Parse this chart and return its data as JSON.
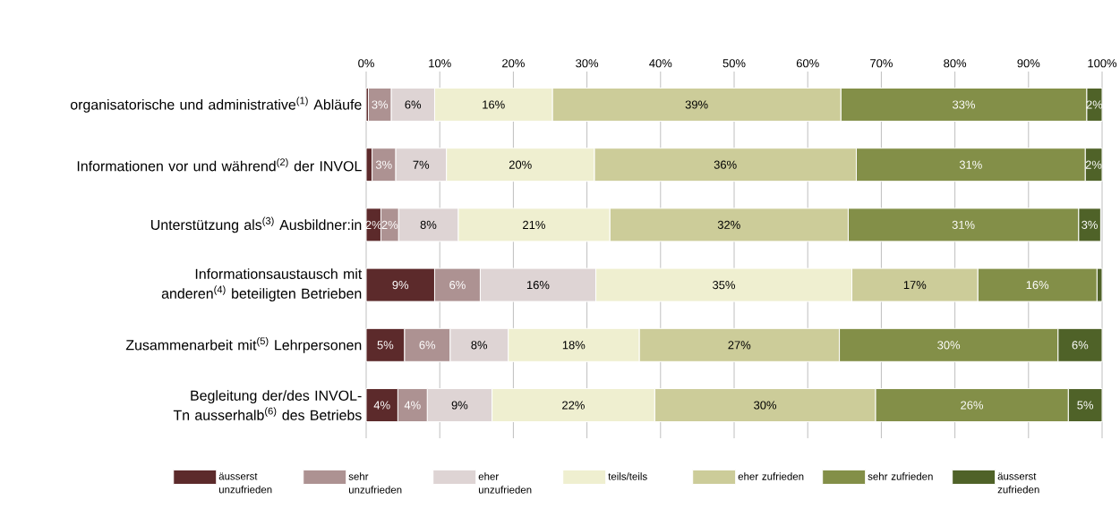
{
  "chart_data": {
    "type": "bar",
    "orientation": "horizontal",
    "stacked": true,
    "categories": [
      "organisatorische und administrative$^{(1)}$ Abläufe",
      "Informationen vor und während$^{(2)}$ der INVOL",
      "Unterstützung als$^{(3)}$ Ausbildner:in",
      "Informationsaustausch mit anderen$^{(4)}$ beteiligten Betrieben",
      "Zusammenarbeit mit$^{(5)}$ Lehrpersonen",
      "Begleitung der/des  INVOL-Tn ausserhalb$^{(6)}$ des Betriebs"
    ],
    "series": [
      {
        "name": "äusserst unzufrieden",
        "color": "#5c2a2b",
        "values": [
          0.3,
          0.8,
          2.0,
          9.3,
          5.2,
          4.3
        ],
        "value_labels": [
          null,
          null,
          "2%",
          "9%",
          "5%",
          "4%"
        ]
      },
      {
        "name": "sehr unzufrieden",
        "color": "#ad9292",
        "values": [
          3.1,
          3.2,
          2.4,
          6.2,
          6.2,
          4.0
        ],
        "value_labels": [
          "3%",
          "3%",
          "2%",
          "6%",
          "6%",
          "4%"
        ]
      },
      {
        "name": "eher unzufrieden",
        "color": "#ded4d4",
        "values": [
          5.9,
          6.9,
          8.1,
          15.7,
          7.9,
          8.8
        ],
        "value_labels": [
          "6%",
          "7%",
          "8%",
          "16%",
          "8%",
          "9%"
        ]
      },
      {
        "name": "teils/teils",
        "color": "#efefd0",
        "values": [
          16.0,
          20.1,
          20.6,
          34.8,
          17.8,
          22.1
        ],
        "value_labels": [
          "16%",
          "20%",
          "21%",
          "35%",
          "18%",
          "22%"
        ]
      },
      {
        "name": "eher zufrieden",
        "color": "#cccc99",
        "values": [
          39.2,
          35.6,
          32.4,
          17.1,
          27.2,
          30.0
        ],
        "value_labels": [
          "39%",
          "36%",
          "32%",
          "17%",
          "27%",
          "30%"
        ]
      },
      {
        "name": "sehr zufrieden",
        "color": "#838f48",
        "values": [
          33.4,
          31.1,
          31.3,
          16.2,
          29.7,
          26.2
        ],
        "value_labels": [
          "33%",
          "31%",
          "31%",
          "16%",
          "30%",
          "26%"
        ]
      },
      {
        "name": "äusserst zufrieden",
        "color": "#4f6228",
        "values": [
          2.1,
          2.3,
          3.0,
          0.7,
          6.0,
          4.6
        ],
        "value_labels": [
          "2%",
          "2%",
          "3%",
          null,
          "6%",
          "5%"
        ]
      }
    ],
    "xlim": [
      0,
      100
    ],
    "xticks": [
      {
        "value": 0,
        "label": "0%"
      },
      {
        "value": 10,
        "label": "10%"
      },
      {
        "value": 20,
        "label": "20%"
      },
      {
        "value": 30,
        "label": "30%"
      },
      {
        "value": 40,
        "label": "40%"
      },
      {
        "value": 50,
        "label": "50%"
      },
      {
        "value": 60,
        "label": "60%"
      },
      {
        "value": 70,
        "label": "70%"
      },
      {
        "value": 80,
        "label": "80%"
      },
      {
        "value": 90,
        "label": "90%"
      },
      {
        "value": 100,
        "label": "100%"
      }
    ],
    "grid": "x",
    "legend": "bottom"
  }
}
